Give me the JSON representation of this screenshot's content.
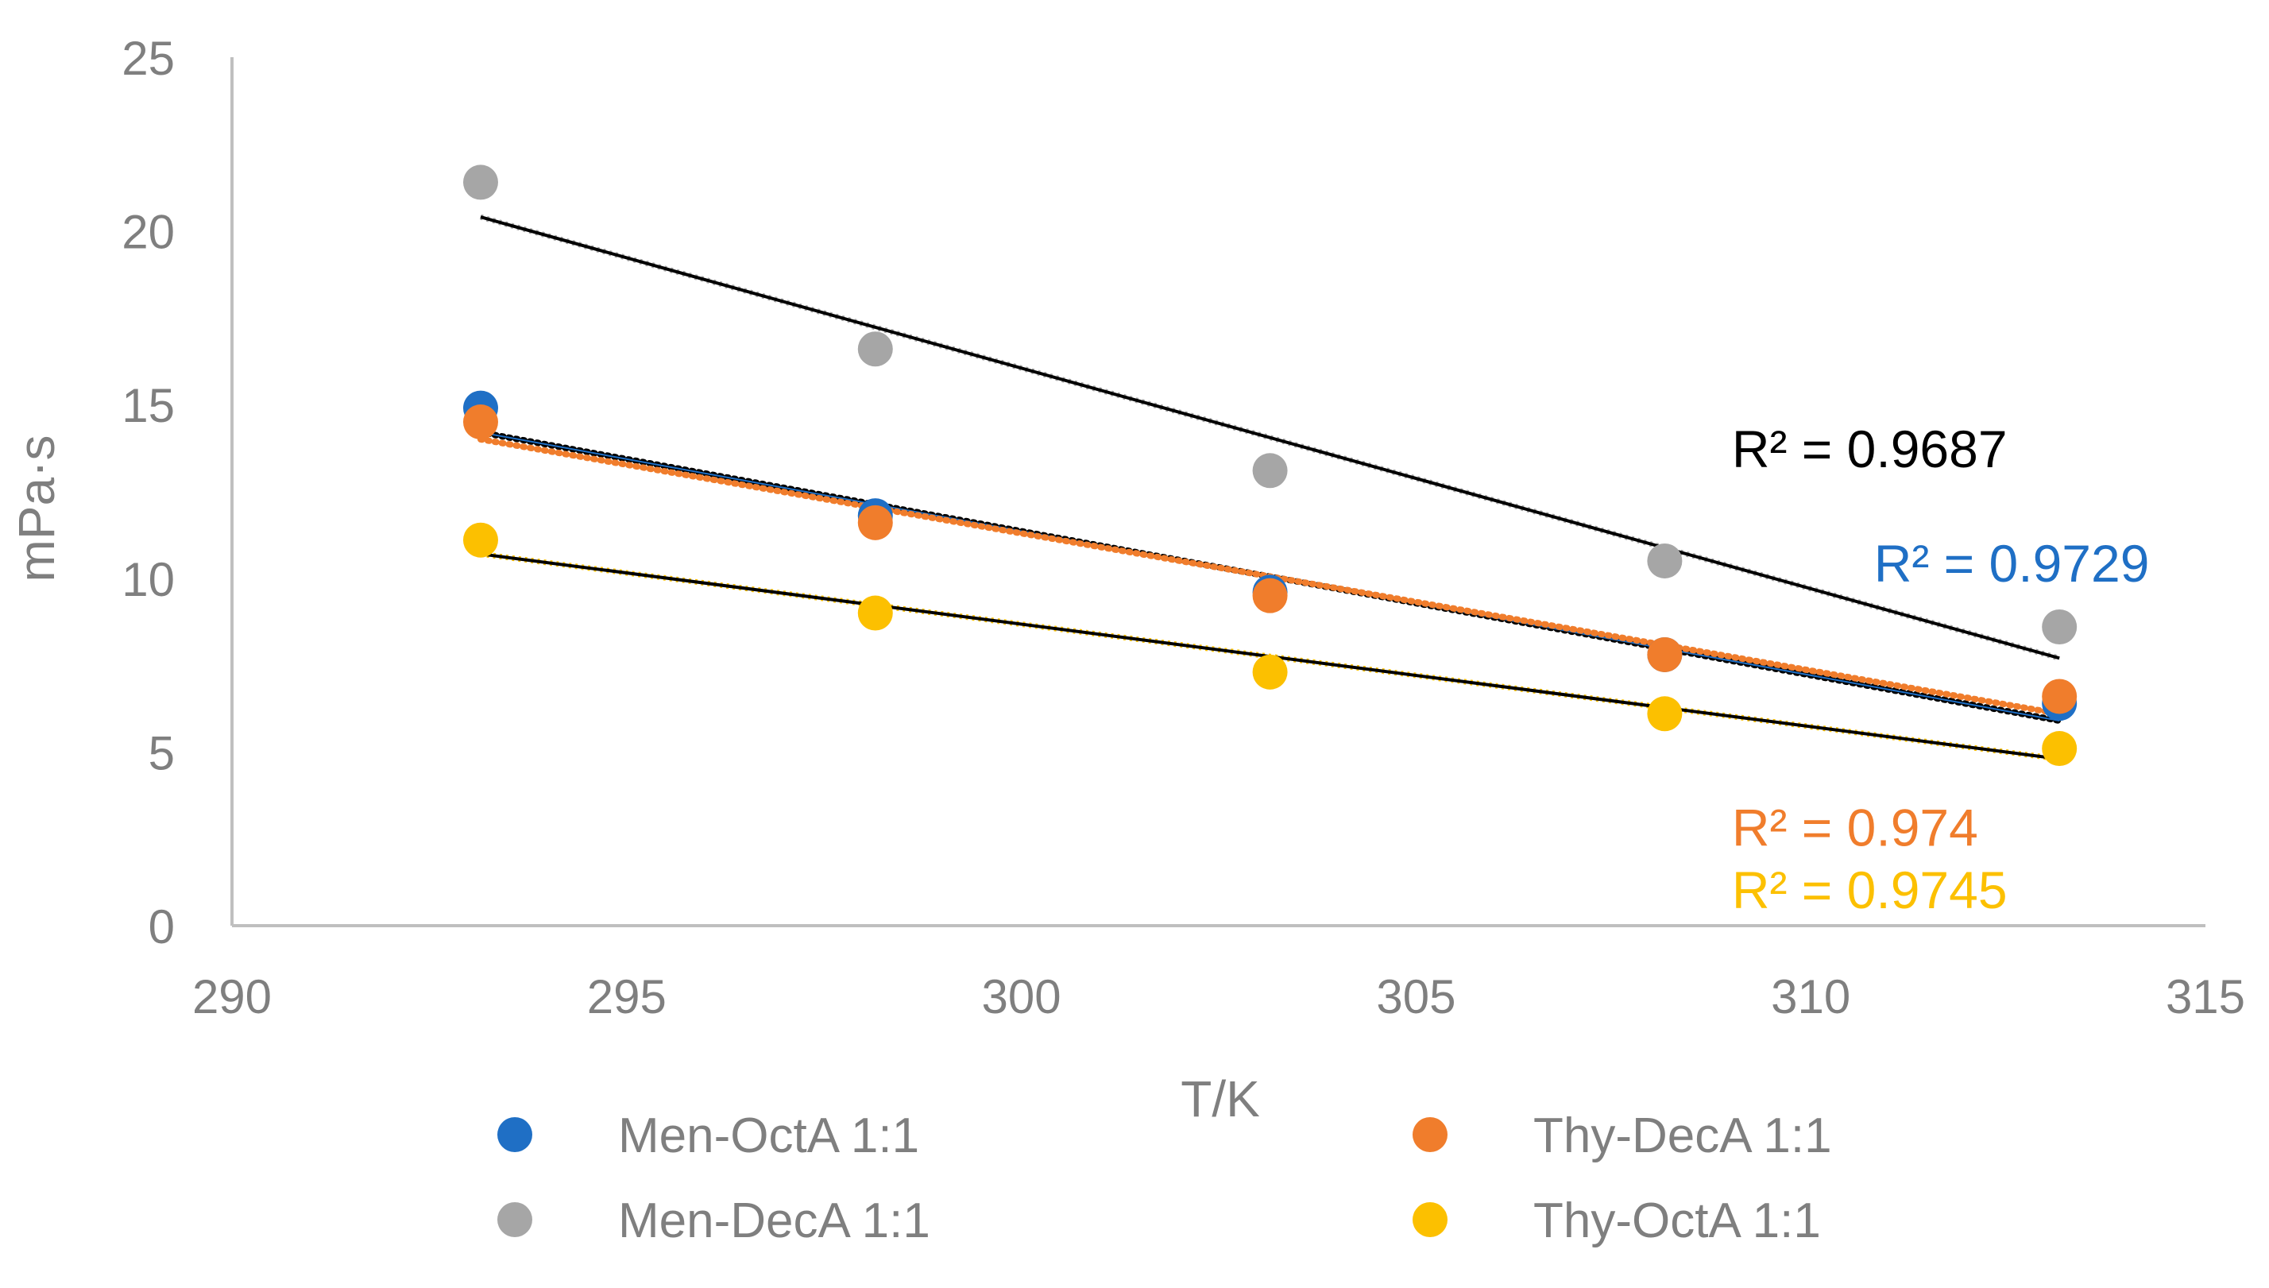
{
  "chart_data": {
    "type": "scatter",
    "title": "",
    "xlabel": "T/K",
    "ylabel": "mPa·s",
    "xlim": [
      290,
      315
    ],
    "ylim": [
      0,
      25
    ],
    "xticks": [
      290,
      295,
      300,
      305,
      310,
      315
    ],
    "yticks": [
      0,
      5,
      10,
      15,
      20,
      25
    ],
    "grid": false,
    "legend_position": "bottom",
    "series": [
      {
        "name": "Men-OctA 1:1",
        "color": "#1f6fc5",
        "x": [
          293.15,
          298.15,
          303.15,
          308.15,
          313.15
        ],
        "y": [
          14.9,
          11.8,
          9.6,
          7.8,
          6.4
        ],
        "trendline": {
          "y_start": 14.2,
          "y_end": 5.9,
          "style": "dotted",
          "line_color": "#000000"
        },
        "r2_label": "R² = 0.9729"
      },
      {
        "name": "Men-DecA 1:1",
        "color": "#a6a6a6",
        "x": [
          293.15,
          298.15,
          303.15,
          308.15,
          313.15
        ],
        "y": [
          21.4,
          16.6,
          13.1,
          10.5,
          8.6
        ],
        "trendline": {
          "y_start": 20.4,
          "y_end": 7.7,
          "style": "solid",
          "line_color": "#000000"
        },
        "r2_label": "R² = 0.9687"
      },
      {
        "name": "Thy-DecA 1:1",
        "color": "#f07d2c",
        "x": [
          293.15,
          298.15,
          303.15,
          308.15,
          313.15
        ],
        "y": [
          14.5,
          11.6,
          9.5,
          7.8,
          6.6
        ],
        "trendline": {
          "y_start": 14.0,
          "y_end": 6.1,
          "style": "dotted",
          "line_color": "#f07d2c"
        },
        "r2_label": "R² = 0.974"
      },
      {
        "name": "Thy-OctA 1:1",
        "color": "#fcc000",
        "x": [
          293.15,
          298.15,
          303.15,
          308.15,
          313.15
        ],
        "y": [
          11.1,
          9.0,
          7.3,
          6.1,
          5.1
        ],
        "trendline": {
          "y_start": 10.7,
          "y_end": 4.8,
          "style": "solid",
          "line_color": "#000000"
        },
        "r2_label": "R² = 0.9745"
      }
    ],
    "annotations": [
      {
        "series": "Men-DecA 1:1",
        "text": "R² = 0.9687",
        "color": "#000000",
        "x": 309.0,
        "y": 13.2
      },
      {
        "series": "Men-OctA 1:1",
        "text": "R² = 0.9729",
        "color": "#1f6fc5",
        "x": 310.8,
        "y": 9.9
      },
      {
        "series": "Thy-DecA 1:1",
        "text": "R² = 0.974",
        "color": "#f07d2c",
        "x": 309.0,
        "y": 2.3
      },
      {
        "series": "Thy-OctA 1:1",
        "text": "R² = 0.9745",
        "color": "#fcc000",
        "x": 309.0,
        "y": 0.5
      }
    ],
    "axis_color": "#bfbfbf",
    "text_color": "#7f7f7f"
  }
}
